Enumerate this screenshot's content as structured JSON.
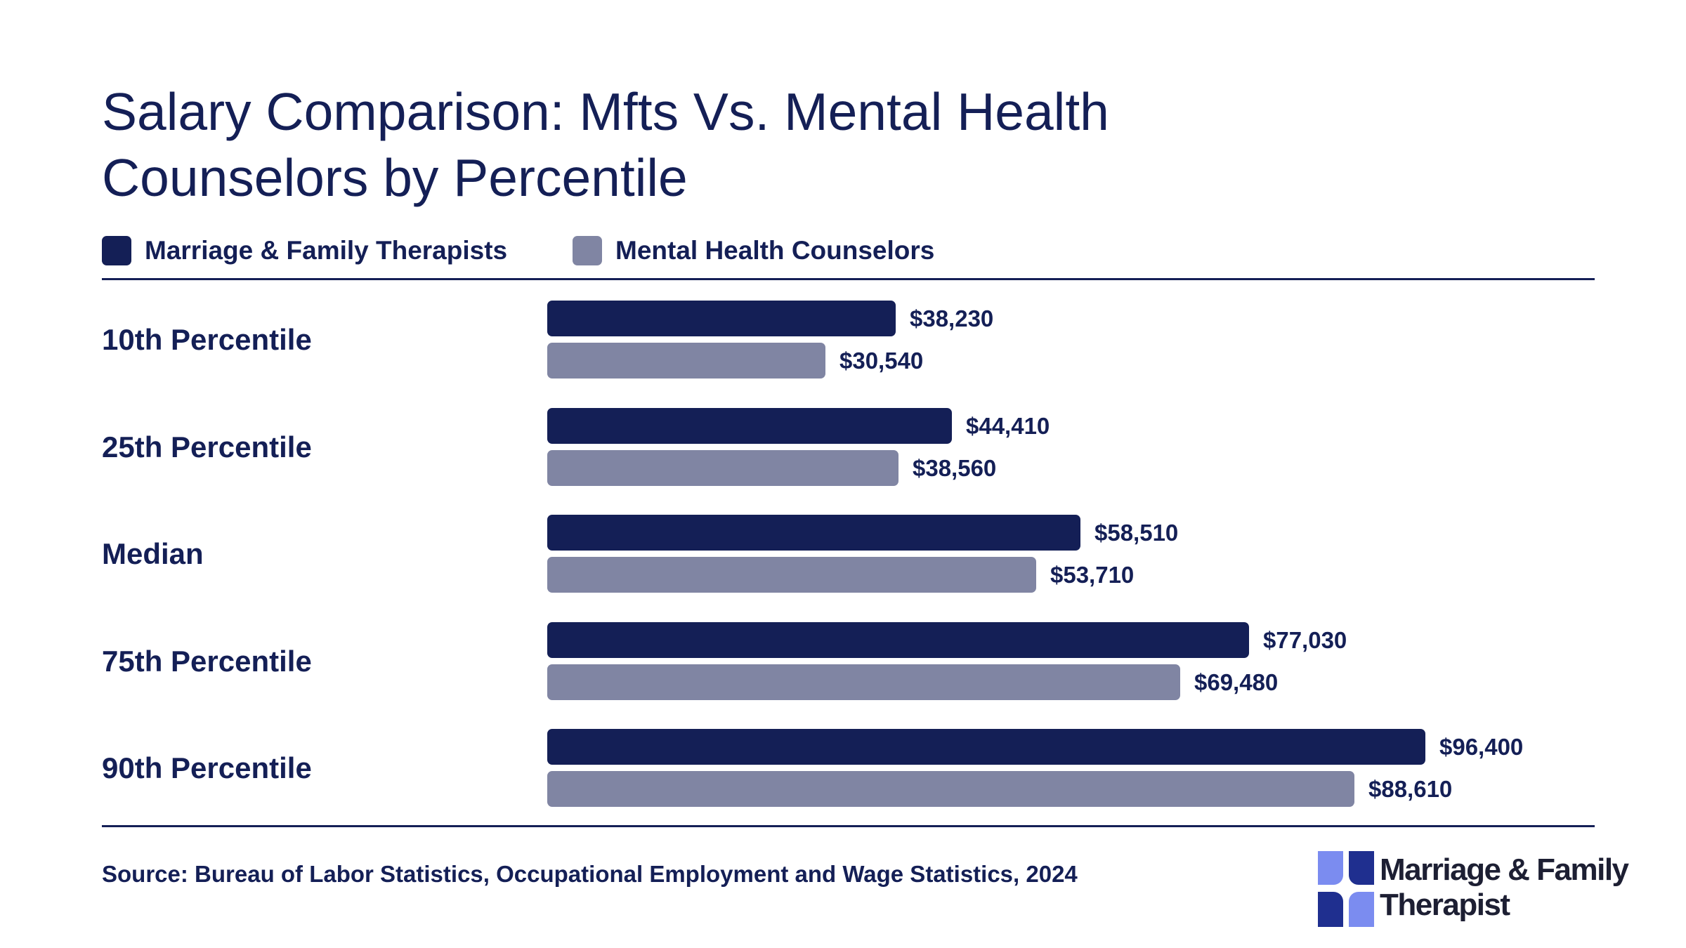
{
  "title": "Salary Comparison: Mfts Vs. Mental Health Counselors by Percentile",
  "source": "Source: Bureau of Labor Statistics, Occupational Employment and Wage Statistics, 2024",
  "logo": {
    "line1": "Marriage & Family",
    "line2": "Therapist"
  },
  "colors": {
    "mft": "#141f56",
    "mhc": "#8085a3",
    "text": "#141f56"
  },
  "chart_data": {
    "type": "bar",
    "orientation": "horizontal",
    "title": "Salary Comparison: Mfts Vs. Mental Health Counselors by Percentile",
    "categories": [
      "10th Percentile",
      "25th Percentile",
      "Median",
      "75th Percentile",
      "90th Percentile"
    ],
    "series": [
      {
        "name": "Marriage & Family Therapists",
        "values": [
          38230,
          44410,
          58510,
          77030,
          96400
        ],
        "labels": [
          "$38,230",
          "$44,410",
          "$58,510",
          "$77,030",
          "$96,400"
        ]
      },
      {
        "name": "Mental Health Counselors",
        "values": [
          30540,
          38560,
          53710,
          69480,
          88610
        ],
        "labels": [
          "$30,540",
          "$38,560",
          "$53,710",
          "$69,480",
          "$88,610"
        ]
      }
    ],
    "xlim": [
      0,
      100000
    ],
    "grid": false,
    "legend_position": "top-left"
  }
}
